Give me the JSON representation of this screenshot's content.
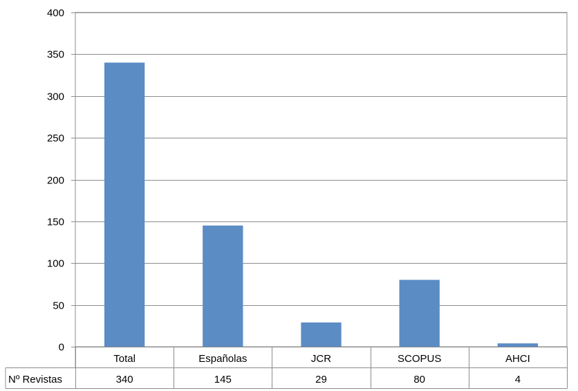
{
  "chart_data": {
    "type": "bar",
    "categories": [
      "Total",
      "Españolas",
      "JCR",
      "SCOPUS",
      "AHCI"
    ],
    "series": [
      {
        "name": "Nº Revistas",
        "values": [
          340,
          145,
          29,
          80,
          4
        ],
        "color": "#5b8cc4"
      }
    ],
    "ylim": [
      0,
      400
    ],
    "yticks": [
      "0",
      "50",
      "100",
      "150",
      "200",
      "250",
      "300",
      "350",
      "400"
    ],
    "grid": true,
    "data_table": true,
    "table": {
      "row_label": "Nº Revistas",
      "cells": [
        "340",
        "145",
        "29",
        "80",
        "4"
      ]
    }
  }
}
